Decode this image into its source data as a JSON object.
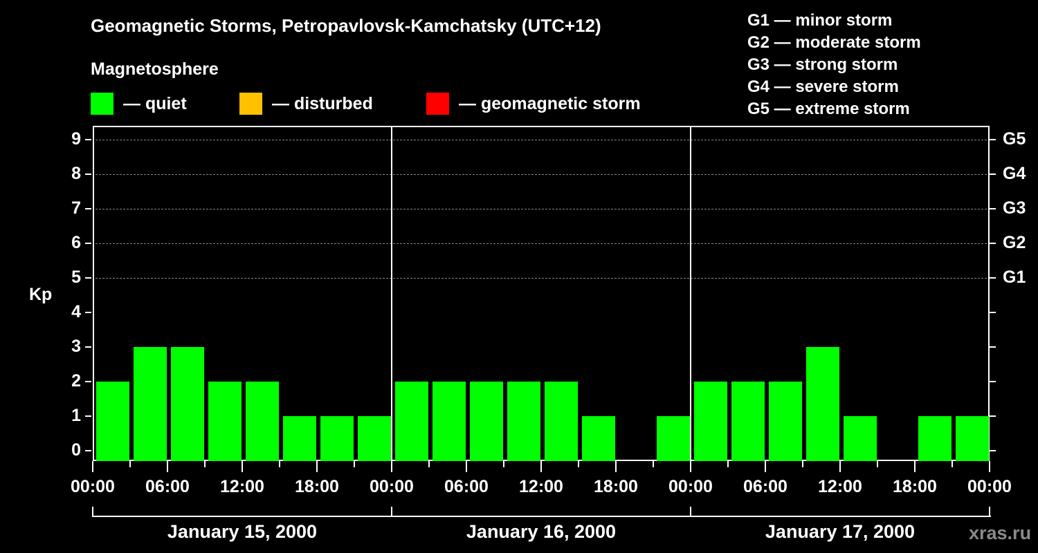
{
  "header": {
    "title": "Geomagnetic Storms, Petropavlovsk-Kamchatsky (UTC+12)",
    "subtitle": "Magnetosphere"
  },
  "legend": [
    {
      "label": "— quiet",
      "color": "#00ff00"
    },
    {
      "label": "— disturbed",
      "color": "#ffc000"
    },
    {
      "label": "— geomagnetic storm",
      "color": "#ff0000"
    }
  ],
  "storm_scale": [
    "G1 — minor storm",
    "G2 — moderate storm",
    "G3 — strong storm",
    "G4 — severe storm",
    "G5 — extreme storm"
  ],
  "axis": {
    "ylabel": "Kp",
    "yticks": [
      "0",
      "1",
      "2",
      "3",
      "4",
      "5",
      "6",
      "7",
      "8",
      "9"
    ],
    "right_ticks": [
      "G1",
      "G2",
      "G3",
      "G4",
      "G5"
    ],
    "xticks": [
      "00:00",
      "06:00",
      "12:00",
      "18:00",
      "00:00",
      "06:00",
      "12:00",
      "18:00",
      "00:00",
      "06:00",
      "12:00",
      "18:00",
      "00:00"
    ],
    "days": [
      "January 15, 2000",
      "January 16, 2000",
      "January 17, 2000"
    ]
  },
  "watermark": "xras.ru",
  "chart_data": {
    "type": "bar",
    "title": "Geomagnetic Storms, Petropavlovsk-Kamchatsky (UTC+12)",
    "xlabel": "",
    "ylabel": "Kp",
    "ylim": [
      0,
      9
    ],
    "grid": "dashed horizontal at Kp 5-9",
    "interval_hours": 3,
    "categories": [
      "Jan 15 00:00",
      "Jan 15 03:00",
      "Jan 15 06:00",
      "Jan 15 09:00",
      "Jan 15 12:00",
      "Jan 15 15:00",
      "Jan 15 18:00",
      "Jan 15 21:00",
      "Jan 16 00:00",
      "Jan 16 03:00",
      "Jan 16 06:00",
      "Jan 16 09:00",
      "Jan 16 12:00",
      "Jan 16 15:00",
      "Jan 16 18:00",
      "Jan 16 21:00",
      "Jan 17 00:00",
      "Jan 17 03:00",
      "Jan 17 06:00",
      "Jan 17 09:00",
      "Jan 17 12:00",
      "Jan 17 15:00",
      "Jan 17 18:00",
      "Jan 17 21:00"
    ],
    "series": [
      {
        "name": "Kp",
        "values": [
          2,
          3,
          3,
          2,
          2,
          1,
          1,
          1,
          2,
          2,
          2,
          2,
          2,
          1,
          0,
          1,
          2,
          2,
          2,
          3,
          1,
          0,
          1,
          1
        ]
      }
    ],
    "bar_colors": "all quiet (#00ff00)",
    "legend": [
      "quiet",
      "disturbed",
      "geomagnetic storm"
    ],
    "right_axis": {
      "G1": 5,
      "G2": 6,
      "G3": 7,
      "G4": 8,
      "G5": 9
    }
  }
}
